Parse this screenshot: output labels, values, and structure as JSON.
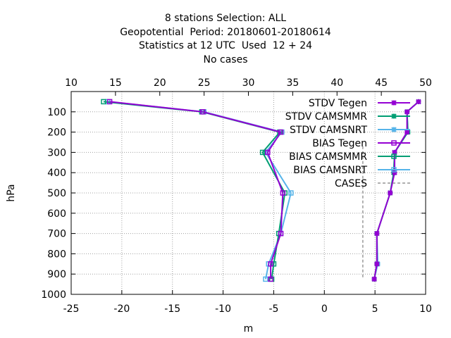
{
  "title_lines": [
    "8 stations Selection: ALL",
    "Geopotential  Period: 20180601-20180614",
    "Statistics at 12 UTC  Used  12 + 24",
    "No cases"
  ],
  "chart_data": {
    "type": "line",
    "xlabel": "m",
    "ylabel": "hPa",
    "x_bottom": {
      "range": [
        -25,
        10
      ],
      "ticks": [
        -25,
        -20,
        -15,
        -10,
        -5,
        0,
        5,
        10
      ]
    },
    "x_top": {
      "range": [
        10,
        50
      ],
      "ticks": [
        10,
        15,
        20,
        25,
        30,
        35,
        40,
        45,
        50
      ]
    },
    "y": {
      "range": [
        0,
        1000
      ],
      "reversed": true,
      "ticks": [
        100,
        200,
        300,
        400,
        500,
        600,
        700,
        800,
        900,
        1000
      ]
    },
    "grid": true,
    "legend_position": "top-right",
    "colors": {
      "tegen": "#9400d3",
      "camsmmr": "#009e73",
      "camsnrt": "#56b4e9",
      "cases": "#7f7f7f"
    },
    "series": [
      {
        "name": "STDV Tegen",
        "axis": "top",
        "marker": "star",
        "color": "#9400d3",
        "points": [
          [
            49.2,
            50
          ],
          [
            47.9,
            100
          ],
          [
            47.9,
            200
          ],
          [
            46.5,
            300
          ],
          [
            46.5,
            400
          ],
          [
            46.0,
            500
          ],
          [
            44.5,
            700
          ],
          [
            44.5,
            850
          ],
          [
            44.2,
            925
          ]
        ]
      },
      {
        "name": "STDV CAMSMMR",
        "axis": "top",
        "marker": "star",
        "color": "#009e73",
        "points": [
          [
            49.2,
            50
          ],
          [
            47.9,
            100
          ],
          [
            48.0,
            200
          ],
          [
            46.5,
            300
          ],
          [
            46.4,
            400
          ],
          [
            46.0,
            500
          ],
          [
            44.5,
            700
          ],
          [
            44.5,
            850
          ],
          [
            44.2,
            925
          ]
        ]
      },
      {
        "name": "STDV CAMSNRT",
        "axis": "top",
        "marker": "star",
        "color": "#56b4e9",
        "points": [
          [
            49.2,
            50
          ],
          [
            47.9,
            100
          ],
          [
            48.0,
            200
          ],
          [
            46.5,
            300
          ],
          [
            46.4,
            400
          ],
          [
            46.0,
            500
          ],
          [
            44.5,
            700
          ],
          [
            44.6,
            850
          ],
          [
            44.2,
            925
          ]
        ]
      },
      {
        "name": "BIAS Tegen",
        "axis": "bottom",
        "marker": "square",
        "color": "#9400d3",
        "points": [
          [
            -21.2,
            50
          ],
          [
            -12.0,
            100
          ],
          [
            -4.3,
            200
          ],
          [
            -5.6,
            300
          ],
          [
            -4.1,
            500
          ],
          [
            -4.3,
            700
          ],
          [
            -5.3,
            850
          ],
          [
            -5.3,
            925
          ]
        ]
      },
      {
        "name": "BIAS CAMSMMR",
        "axis": "bottom",
        "marker": "square",
        "color": "#009e73",
        "points": [
          [
            -21.8,
            50
          ],
          [
            -12.1,
            100
          ],
          [
            -4.4,
            200
          ],
          [
            -6.1,
            300
          ],
          [
            -3.9,
            500
          ],
          [
            -4.5,
            700
          ],
          [
            -5.0,
            850
          ],
          [
            -5.2,
            925
          ]
        ]
      },
      {
        "name": "BIAS CAMSNRT",
        "axis": "bottom",
        "marker": "square",
        "color": "#56b4e9",
        "points": [
          [
            -21.4,
            50
          ],
          [
            -11.9,
            100
          ],
          [
            -4.2,
            200
          ],
          [
            -5.8,
            300
          ],
          [
            -3.3,
            500
          ],
          [
            -4.3,
            700
          ],
          [
            -5.5,
            850
          ],
          [
            -5.8,
            925
          ]
        ]
      },
      {
        "name": "CASES",
        "axis": "bottom",
        "marker": "none",
        "color": "#7f7f7f",
        "dashed": true,
        "points": [
          [
            3.8,
            270
          ],
          [
            3.8,
            925
          ]
        ]
      }
    ]
  }
}
